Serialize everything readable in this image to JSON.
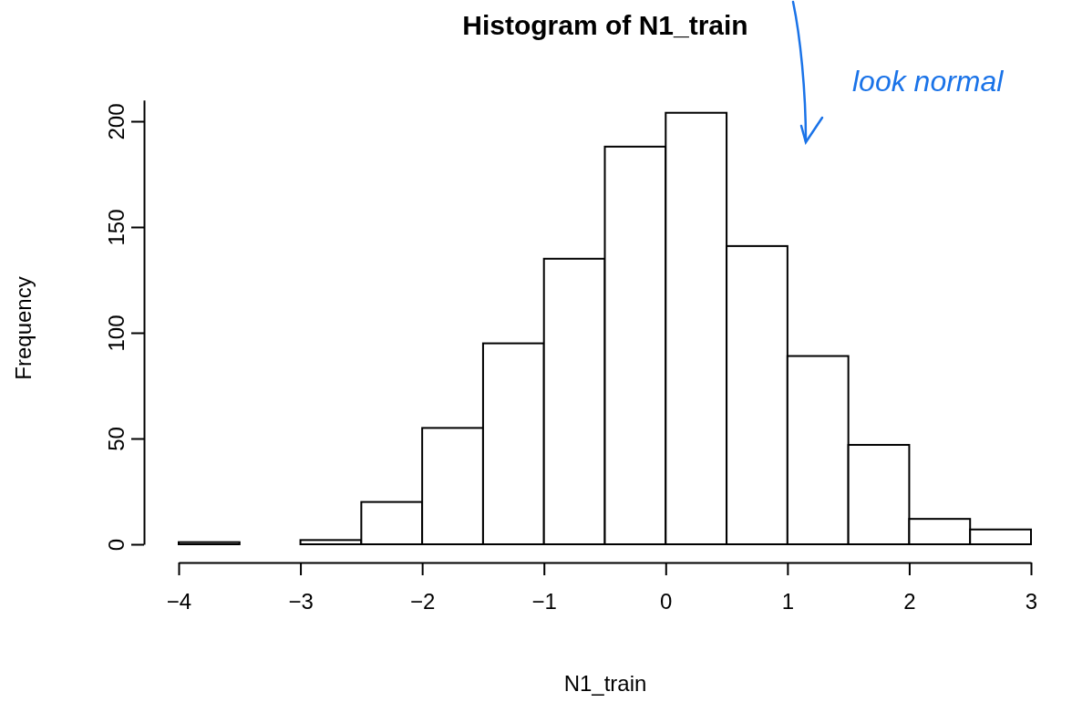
{
  "chart_data": {
    "type": "histogram",
    "title": "Histogram of N1_train",
    "xlabel": "N1_train",
    "ylabel": "Frequency",
    "bins": [
      -4,
      -3.5,
      -3,
      -2.5,
      -2,
      -1.5,
      -1,
      -0.5,
      0,
      0.5,
      1,
      1.5,
      2,
      2.5,
      3
    ],
    "values": [
      1,
      0,
      2,
      20,
      55,
      95,
      135,
      188,
      204,
      141,
      89,
      47,
      12,
      7
    ],
    "color": "#ffffff",
    "xlim": [
      -4,
      3
    ],
    "xticks": [
      {
        "value": -4,
        "label": "−4"
      },
      {
        "value": -3,
        "label": "−3"
      },
      {
        "value": -2,
        "label": "−2"
      },
      {
        "value": -1,
        "label": "−1"
      },
      0,
      1,
      2,
      3
    ],
    "ylim": [
      0,
      210
    ],
    "yticks": [
      0,
      50,
      100,
      150,
      200
    ],
    "grid": false,
    "annotations": [
      "look normal"
    ]
  }
}
